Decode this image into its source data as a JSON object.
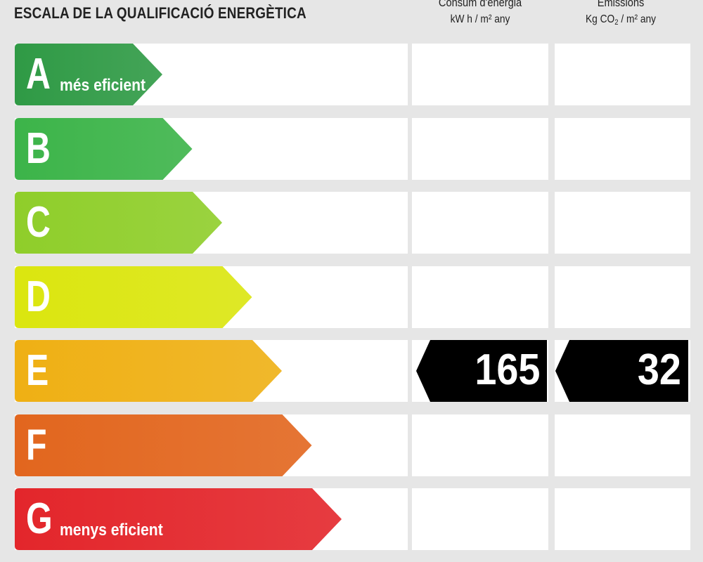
{
  "header": {
    "title": "ESCALA DE LA QUALIFICACIÓ ENERGÈTICA",
    "consum_label": "Consum d'energia",
    "consum_unit": "kW h / m² any",
    "emissions_label": "Emissions",
    "emissions_unit_pre": "Kg CO",
    "emissions_unit_sub": "2",
    "emissions_unit_post": " / m² any"
  },
  "chart_data": {
    "type": "table",
    "classes": [
      {
        "letter": "A",
        "note": "més eficient",
        "color": "#2f9a45"
      },
      {
        "letter": "B",
        "note": "",
        "color": "#3cb449"
      },
      {
        "letter": "C",
        "note": "",
        "color": "#8fce2a"
      },
      {
        "letter": "D",
        "note": "",
        "color": "#dbe60f"
      },
      {
        "letter": "E",
        "note": "",
        "color": "#efb014"
      },
      {
        "letter": "F",
        "note": "",
        "color": "#e2661e"
      },
      {
        "letter": "G",
        "note": "menys eficient",
        "color": "#e3262b"
      }
    ],
    "rating": {
      "class": "E",
      "energy_consumption": "165",
      "emissions": "32"
    }
  }
}
